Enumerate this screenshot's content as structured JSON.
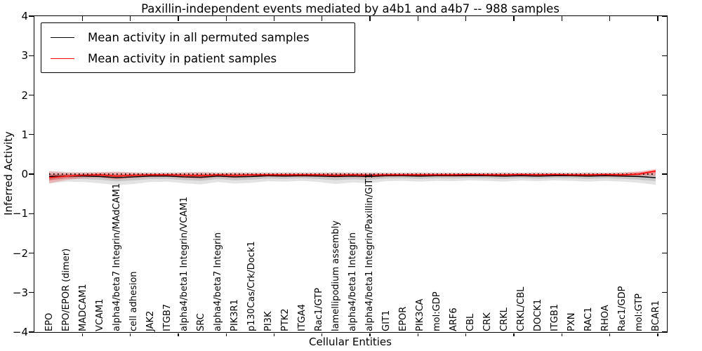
{
  "chart_data": {
    "type": "line",
    "title": "Paxillin-independent events mediated by a4b1 and a4b7 -- 988 samples",
    "xlabel": "Cellular Entities",
    "ylabel": "Inferred Activity",
    "ylim": [
      -4,
      4
    ],
    "yticks": [
      4,
      3,
      2,
      1,
      0,
      -1,
      -2,
      -3,
      -4
    ],
    "grid": false,
    "legend_position": "upper left",
    "zero_line_style": "dotted",
    "categories": [
      "EPO",
      "EPO/EPOR (dimer)",
      "MADCAM1",
      "VCAM1",
      "alpha4/beta7 Integrin/MAdCAM1",
      "cell adhesion",
      "JAK2",
      "ITGB7",
      "alpha4/beta1 Integrin/VCAM1",
      "SRC",
      "alpha4/beta7 Integrin",
      "PIK3R1",
      "p130Cas/Crk/Dock1",
      "PI3K",
      "PTK2",
      "ITGA4",
      "Rac1/GTP",
      "lamellipodium assembly",
      "alpha4/beta1 Integrin",
      "alpha4/beta1 Integrin/Paxillin/GIT1",
      "GIT1",
      "EPOR",
      "PIK3CA",
      "mol:GDP",
      "ARF6",
      "CBL",
      "CRK",
      "CRKL",
      "CRKL/CBL",
      "DOCK1",
      "ITGB1",
      "PXN",
      "RAC1",
      "RHOA",
      "Rac1/GDP",
      "mol:GTP",
      "BCAR1"
    ],
    "series": [
      {
        "name": "Mean activity in all permuted samples",
        "color": "#000000",
        "band_color": "#999999",
        "values": [
          -0.06,
          -0.05,
          -0.05,
          -0.06,
          -0.09,
          -0.07,
          -0.05,
          -0.05,
          -0.07,
          -0.08,
          -0.05,
          -0.07,
          -0.06,
          -0.04,
          -0.05,
          -0.04,
          -0.05,
          -0.06,
          -0.05,
          -0.06,
          -0.04,
          -0.04,
          -0.05,
          -0.04,
          -0.04,
          -0.04,
          -0.04,
          -0.05,
          -0.04,
          -0.05,
          -0.04,
          -0.04,
          -0.05,
          -0.04,
          -0.05,
          -0.06,
          -0.09
        ],
        "band_upper": [
          0.08,
          0.06,
          0.05,
          0.05,
          0.06,
          0.05,
          0.05,
          0.05,
          0.05,
          0.06,
          0.05,
          0.05,
          0.05,
          0.05,
          0.05,
          0.05,
          0.05,
          0.05,
          0.05,
          0.05,
          0.04,
          0.04,
          0.05,
          0.04,
          0.04,
          0.04,
          0.04,
          0.05,
          0.04,
          0.05,
          0.04,
          0.04,
          0.05,
          0.04,
          0.05,
          0.06,
          0.08
        ],
        "band_lower": [
          -0.24,
          -0.19,
          -0.2,
          -0.23,
          -0.28,
          -0.25,
          -0.2,
          -0.19,
          -0.23,
          -0.26,
          -0.2,
          -0.24,
          -0.22,
          -0.18,
          -0.19,
          -0.17,
          -0.2,
          -0.25,
          -0.21,
          -0.23,
          -0.18,
          -0.17,
          -0.19,
          -0.17,
          -0.18,
          -0.16,
          -0.17,
          -0.19,
          -0.16,
          -0.18,
          -0.16,
          -0.17,
          -0.19,
          -0.17,
          -0.19,
          -0.22,
          -0.27
        ]
      },
      {
        "name": "Mean activity in patient samples",
        "color": "#ff0000",
        "band_color": "#ff6666",
        "values": [
          -0.09,
          -0.05,
          -0.03,
          -0.02,
          -0.05,
          -0.03,
          -0.02,
          -0.02,
          -0.03,
          -0.04,
          -0.02,
          -0.03,
          -0.02,
          -0.02,
          -0.02,
          -0.02,
          -0.02,
          -0.03,
          -0.02,
          -0.03,
          -0.02,
          -0.02,
          -0.02,
          -0.02,
          -0.02,
          -0.01,
          -0.02,
          -0.02,
          -0.01,
          -0.02,
          -0.01,
          -0.02,
          -0.02,
          -0.01,
          -0.02,
          0.0,
          0.08
        ],
        "band_upper": [
          0.07,
          0.04,
          0.04,
          0.05,
          0.06,
          0.04,
          0.03,
          0.03,
          0.04,
          0.05,
          0.03,
          0.04,
          0.03,
          0.03,
          0.03,
          0.03,
          0.03,
          0.04,
          0.03,
          0.03,
          0.03,
          0.03,
          0.03,
          0.03,
          0.03,
          0.03,
          0.03,
          0.03,
          0.03,
          0.03,
          0.03,
          0.03,
          0.03,
          0.03,
          0.04,
          0.07,
          0.13
        ],
        "band_lower": [
          -0.23,
          -0.15,
          -0.1,
          -0.09,
          -0.14,
          -0.1,
          -0.08,
          -0.07,
          -0.1,
          -0.12,
          -0.08,
          -0.1,
          -0.08,
          -0.07,
          -0.07,
          -0.07,
          -0.07,
          -0.09,
          -0.08,
          -0.09,
          -0.07,
          -0.06,
          -0.07,
          -0.06,
          -0.07,
          -0.06,
          -0.06,
          -0.07,
          -0.06,
          -0.07,
          -0.06,
          -0.06,
          -0.07,
          -0.06,
          -0.07,
          -0.05,
          -0.04
        ]
      }
    ]
  },
  "legend": {
    "items": [
      {
        "label": "Mean activity in all permuted samples",
        "color": "#000000"
      },
      {
        "label": "Mean activity in patient samples",
        "color": "#ff0000"
      }
    ]
  }
}
